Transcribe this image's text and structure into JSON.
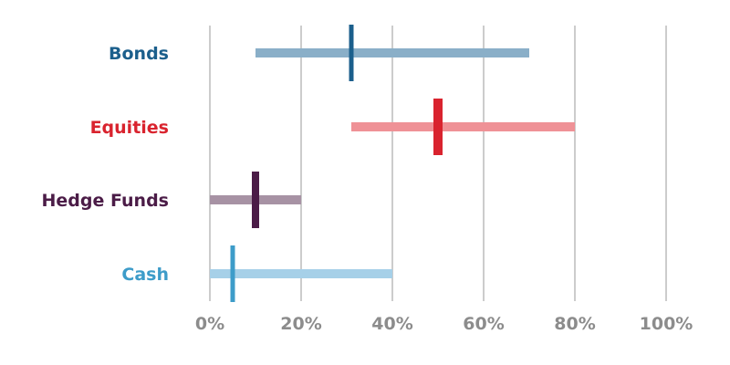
{
  "chart_data": {
    "type": "range-bar",
    "xlim": [
      0,
      100
    ],
    "x_ticks": [
      "0%",
      "20%",
      "40%",
      "60%",
      "80%",
      "100%"
    ],
    "x_tick_values": [
      0,
      20,
      40,
      60,
      80,
      100
    ],
    "grid": "vertical",
    "series": [
      {
        "name": "Bonds",
        "range": [
          10,
          70
        ],
        "marker": 31,
        "color": "#1b5f8c",
        "range_color": "#8aafc8"
      },
      {
        "name": "Equities",
        "range": [
          31,
          80
        ],
        "marker": 50,
        "color": "#d9232e",
        "range_color": "#ef9196"
      },
      {
        "name": "Hedge Funds",
        "range": [
          0,
          20
        ],
        "marker": 10,
        "color": "#4b1c47",
        "range_color": "#a792a4"
      },
      {
        "name": "Cash",
        "range": [
          0,
          40
        ],
        "marker": 5,
        "color": "#3d9cc9",
        "range_color": "#a6d0e8"
      }
    ]
  }
}
